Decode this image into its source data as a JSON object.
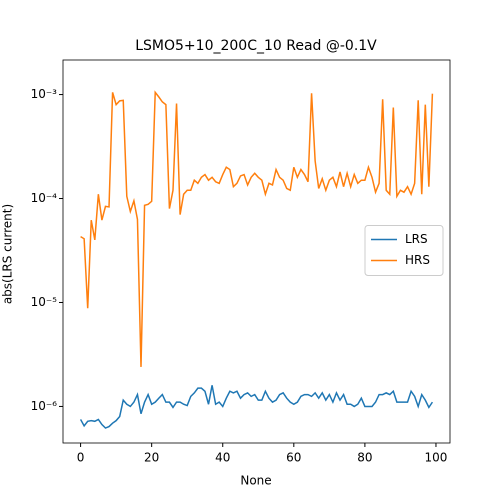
{
  "chart_data": {
    "type": "line",
    "title": "LSMO5+10_200C_10 Read @-0.1V",
    "xlabel": "None",
    "ylabel": "abs(LRS current)",
    "x": [
      0,
      1,
      2,
      3,
      4,
      5,
      6,
      7,
      8,
      9,
      10,
      11,
      12,
      13,
      14,
      15,
      16,
      17,
      18,
      19,
      20,
      21,
      22,
      23,
      24,
      25,
      26,
      27,
      28,
      29,
      30,
      31,
      32,
      33,
      34,
      35,
      36,
      37,
      38,
      39,
      40,
      41,
      42,
      43,
      44,
      45,
      46,
      47,
      48,
      49,
      50,
      51,
      52,
      53,
      54,
      55,
      56,
      57,
      58,
      59,
      60,
      61,
      62,
      63,
      64,
      65,
      66,
      67,
      68,
      69,
      70,
      71,
      72,
      73,
      74,
      75,
      76,
      77,
      78,
      79,
      80,
      81,
      82,
      83,
      84,
      85,
      86,
      87,
      88,
      89,
      90,
      91,
      92,
      93,
      94,
      95,
      96,
      97,
      98,
      99
    ],
    "series": [
      {
        "name": "LRS",
        "color": "#1f77b4",
        "values": [
          7.5e-07,
          6.5e-07,
          7.2e-07,
          7.3e-07,
          7.2e-07,
          7.5e-07,
          6.7e-07,
          6.2e-07,
          6.4e-07,
          6.9e-07,
          7.3e-07,
          8e-07,
          1.15e-06,
          1.05e-06,
          1e-06,
          1.1e-06,
          1.3e-06,
          8.5e-07,
          1.1e-06,
          1.3e-06,
          1.05e-06,
          1.1e-06,
          1.2e-06,
          1.3e-06,
          1.1e-06,
          1.1e-06,
          9.8e-07,
          1.1e-06,
          1.1e-06,
          1.05e-06,
          1.02e-06,
          1.25e-06,
          1.35e-06,
          1.5e-06,
          1.5e-06,
          1.4e-06,
          1.05e-06,
          1.6e-06,
          1.05e-06,
          1.1e-06,
          1e-06,
          1.2e-06,
          1.4e-06,
          1.35e-06,
          1.4e-06,
          1.2e-06,
          1.3e-06,
          1.35e-06,
          1.25e-06,
          1.3e-06,
          1.15e-06,
          1.15e-06,
          1.4e-06,
          1.2e-06,
          1.1e-06,
          1.15e-06,
          1.3e-06,
          1.35e-06,
          1.2e-06,
          1.1e-06,
          1.05e-06,
          1.1e-06,
          1.25e-06,
          1.3e-06,
          1.3e-06,
          1.25e-06,
          1.35e-06,
          1.2e-06,
          1.35e-06,
          1.15e-06,
          1.3e-06,
          1.1e-06,
          1.35e-06,
          1.15e-06,
          1.3e-06,
          1.05e-06,
          1.05e-06,
          1e-06,
          1.05e-06,
          1.2e-06,
          1e-06,
          1e-06,
          1e-06,
          1.1e-06,
          1.3e-06,
          1.3e-06,
          1.35e-06,
          1.3e-06,
          1.4e-06,
          1.1e-06,
          1.1e-06,
          1.1e-06,
          1.1e-06,
          1.4e-06,
          1.25e-06,
          1e-06,
          1.3e-06,
          1.15e-06,
          9.8e-07,
          1.1e-06
        ]
      },
      {
        "name": "HRS",
        "color": "#ff7f0e",
        "values": [
          4.3e-05,
          4.1e-05,
          8.8e-06,
          6.2e-05,
          4e-05,
          0.00011,
          6.2e-05,
          8.4e-05,
          8.3e-05,
          0.00105,
          0.0008,
          0.00087,
          0.00088,
          0.000105,
          7.5e-05,
          9.5e-05,
          6.3e-05,
          2.4e-06,
          8.6e-05,
          8.8e-05,
          9.4e-05,
          0.00105,
          0.00095,
          0.00085,
          0.0008,
          8e-05,
          0.00012,
          0.00082,
          7e-05,
          0.00011,
          0.00012,
          0.00012,
          0.00015,
          0.00014,
          0.00016,
          0.00017,
          0.00015,
          0.00016,
          0.000145,
          0.00014,
          0.00017,
          0.0002,
          0.00019,
          0.00013,
          0.00014,
          0.000165,
          0.00017,
          0.000135,
          0.00016,
          0.000175,
          0.00016,
          0.00015,
          0.00011,
          0.00014,
          0.000135,
          0.00019,
          0.00016,
          0.00015,
          0.000125,
          0.00012,
          0.0002,
          0.00016,
          0.00019,
          0.00017,
          0.000145,
          0.00103,
          0.00023,
          0.000125,
          0.000155,
          0.00012,
          0.00015,
          0.00016,
          0.00013,
          0.00018,
          0.00013,
          0.000175,
          0.00013,
          0.00017,
          0.00014,
          0.00015,
          0.00015,
          0.0002,
          0.00016,
          0.000115,
          0.00014,
          0.0009,
          0.00012,
          0.00011,
          0.00075,
          0.000105,
          0.00012,
          0.000115,
          0.00013,
          0.00011,
          0.00014,
          0.00088,
          0.00011,
          0.0008,
          0.00013,
          0.00102
        ]
      }
    ],
    "xlim": [
      -4.95,
      103.95
    ],
    "xticks": [
      0,
      20,
      40,
      60,
      80,
      100
    ],
    "ylim": [
      4.45e-07,
      0.00215
    ],
    "log_y": true,
    "yticks": [
      {
        "value": 1e-06,
        "label": "10⁻⁶"
      },
      {
        "value": 1e-05,
        "label": "10⁻⁵"
      },
      {
        "value": 0.0001,
        "label": "10⁻⁴"
      },
      {
        "value": 0.001,
        "label": "10⁻³"
      }
    ],
    "legend": "right"
  }
}
